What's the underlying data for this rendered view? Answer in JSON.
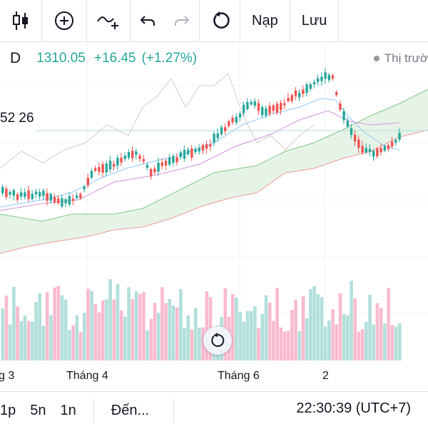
{
  "toolbar": {
    "deposit_label": "Nạp",
    "save_label": "Lưu",
    "icons": [
      "candles-icon",
      "add-circle-icon",
      "indicators-icon",
      "undo-icon",
      "redo-icon",
      "reload-icon"
    ]
  },
  "legend": {
    "interval": "D",
    "price": "1310.05",
    "change": "+16.45",
    "change_pct": "(+1.27%)",
    "market_status": "Thị trườ"
  },
  "indicator_value": "52 26",
  "x_axis": [
    "g 3",
    "Tháng 4",
    "Tháng 6",
    "2"
  ],
  "bottombar": {
    "intervals": [
      "1p",
      "5n",
      "1n"
    ],
    "goto_label": "Đến...",
    "clock": "22:30:39 (UTC+7)"
  },
  "colors": {
    "up": "#26a69a",
    "down": "#ef5350",
    "cloud": "#c8e6c9",
    "volume_up": "#b2dfdb",
    "volume_down": "#f8bbd0"
  }
}
